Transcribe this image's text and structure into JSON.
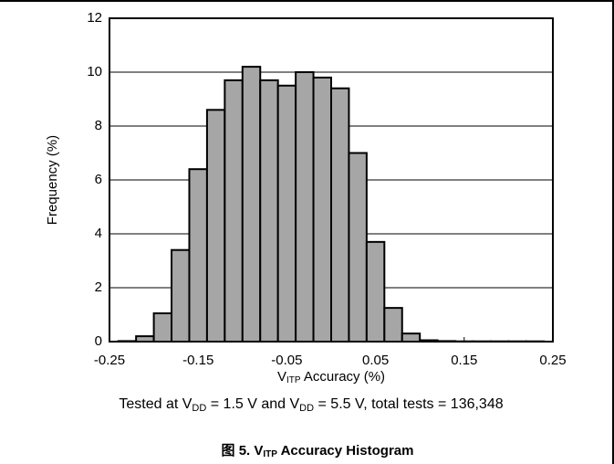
{
  "chart_data": {
    "type": "histogram",
    "y_label": "Frequency (%)",
    "x_label": [
      "V",
      "ITP",
      " Accuracy (%)"
    ],
    "note": [
      "Tested at V",
      "DD",
      " = 1.5 V and V",
      "DD",
      " = 5.5 V, total tests = 136,348"
    ],
    "caption": [
      "图 5. V",
      "ITP",
      " Accuracy Histogram"
    ],
    "bins": [
      -0.24,
      -0.22,
      -0.2,
      -0.18,
      -0.16,
      -0.14,
      -0.12,
      -0.1,
      -0.08,
      -0.06,
      -0.04,
      -0.02,
      0,
      0.02,
      0.04,
      0.06,
      0.08,
      0.1,
      0.12,
      0.14,
      0.16,
      0.18,
      0.2,
      0.22,
      0.24
    ],
    "values": [
      0.02,
      0.2,
      1.05,
      3.4,
      6.4,
      8.6,
      9.7,
      10.2,
      9.7,
      9.5,
      10.0,
      9.8,
      9.4,
      7.0,
      3.7,
      1.25,
      0.3,
      0.05,
      0.02,
      0.01,
      0.01,
      0.01,
      0.01,
      0.01
    ],
    "color": "#a6a6a6",
    "xlim": [
      -0.25,
      0.25
    ],
    "xticks": [
      -0.25,
      -0.15,
      -0.05,
      0.05,
      0.15,
      0.25
    ],
    "ylim": [
      0,
      12
    ],
    "yticks": [
      0,
      2,
      4,
      6,
      8,
      10,
      12
    ],
    "grid": true
  }
}
